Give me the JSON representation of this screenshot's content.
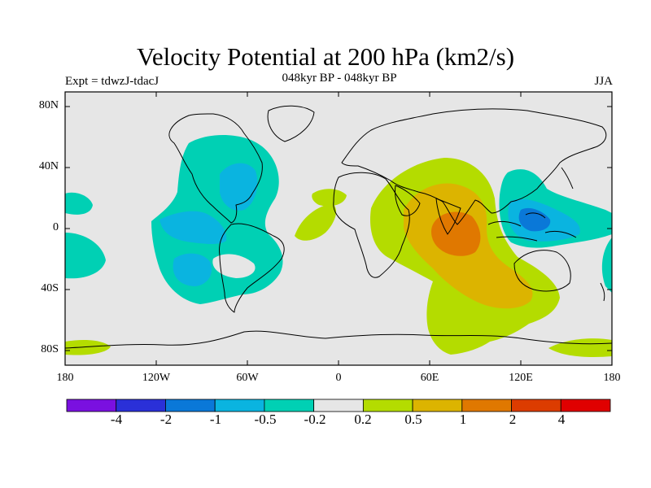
{
  "header": {
    "title": "Velocity Potential at 200 hPa (km2/s)",
    "expt": "Expt = tdwzJ-tdacJ",
    "subtitle": "048kyr BP - 048kyr BP",
    "season": "JJA"
  },
  "axes": {
    "lat_labels": [
      "80N",
      "40N",
      "0",
      "40S",
      "80S"
    ],
    "lon_labels": [
      "180",
      "120W",
      "60W",
      "0",
      "60E",
      "120E",
      "180"
    ]
  },
  "colorbar": {
    "labels": [
      "-4",
      "-2",
      "-1",
      "-0.5",
      "-0.2",
      "0.2",
      "0.5",
      "1",
      "2",
      "4"
    ],
    "colors": [
      "#7a10e0",
      "#2a30d8",
      "#0a78d8",
      "#0ab4e0",
      "#00d0b4",
      "#e6e6e6",
      "#b4dc00",
      "#dcb400",
      "#e07800",
      "#dc3c00",
      "#e00000"
    ]
  },
  "map": {
    "background_color": "#e6e6e6",
    "anomaly_colors": {
      "neg_light": "#00d0b4",
      "neg_mid": "#0ab4e0",
      "neg_strong": "#0a78d8",
      "pos_light": "#b4dc00",
      "pos_mid": "#dcb400",
      "pos_strong": "#e07800"
    }
  }
}
